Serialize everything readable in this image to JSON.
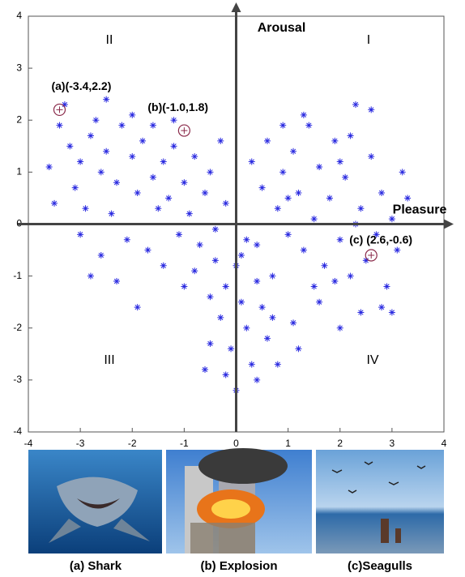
{
  "chart_data": {
    "type": "scatter",
    "xlim": [
      -4,
      4
    ],
    "ylim": [
      -4,
      4
    ],
    "xticks": [
      -4,
      -3,
      -2,
      -1,
      0,
      1,
      2,
      3,
      4
    ],
    "yticks": [
      -4,
      -3,
      -2,
      -1,
      0,
      1,
      2,
      3,
      4
    ],
    "x_label": "Pleasure",
    "y_label": "Arousal",
    "quadrant_labels": [
      "I",
      "II",
      "III",
      "IV"
    ],
    "color": "#2a2ae0",
    "x": [
      -3.4,
      -3.2,
      -3.0,
      -2.8,
      -2.6,
      -2.5,
      -2.3,
      -2.2,
      -2.0,
      -1.9,
      -1.8,
      -1.6,
      -1.5,
      -1.4,
      -1.3,
      -1.2,
      -1.1,
      -1.0,
      -0.9,
      -0.8,
      -0.7,
      -0.6,
      -0.5,
      -0.4,
      -3.6,
      -3.1,
      -2.9,
      -2.7,
      -2.4,
      -2.1,
      -1.7,
      -1.4,
      -3.3,
      -2.0,
      -1.6,
      -3.0,
      -2.6,
      -2.3,
      -1.9,
      -2.5,
      -1.2,
      -0.3,
      -0.2,
      -3.5,
      -2.8,
      -1.0,
      -0.5,
      0.3,
      0.5,
      0.6,
      0.8,
      0.9,
      1.0,
      1.1,
      1.2,
      1.3,
      1.4,
      1.5,
      1.6,
      1.7,
      1.8,
      1.9,
      2.0,
      2.1,
      2.2,
      2.3,
      2.4,
      2.5,
      2.6,
      2.7,
      2.8,
      2.9,
      3.0,
      3.1,
      3.2,
      2.2,
      1.3,
      0.9,
      1.6,
      2.0,
      2.4,
      2.8,
      3.0,
      1.1,
      0.7,
      1.5,
      2.6,
      2.0,
      1.0,
      0.4,
      1.9,
      3.3,
      2.3,
      1.2,
      0.5,
      -0.4,
      -0.2,
      0.0,
      0.1,
      0.2,
      -0.1,
      0.3,
      0.0,
      -0.3,
      0.4,
      0.6,
      0.2,
      -0.5,
      0.8,
      -0.6,
      0.1,
      0.4,
      -0.2,
      0.7,
      -0.8
    ],
    "values": [
      1.9,
      1.5,
      1.2,
      1.7,
      1.0,
      1.4,
      0.8,
      1.9,
      1.3,
      0.6,
      1.6,
      0.9,
      0.3,
      1.2,
      0.5,
      1.5,
      -0.2,
      0.8,
      0.2,
      1.3,
      -0.4,
      0.6,
      1.0,
      -0.1,
      1.1,
      0.7,
      0.3,
      2.0,
      0.2,
      -0.3,
      -0.5,
      -0.8,
      2.3,
      2.1,
      1.9,
      -0.2,
      -0.6,
      -1.1,
      -1.6,
      2.4,
      2.0,
      1.6,
      0.4,
      0.4,
      -1.0,
      -1.2,
      -2.3,
      1.2,
      0.7,
      1.6,
      0.3,
      1.0,
      -0.2,
      1.4,
      0.6,
      -0.5,
      1.9,
      0.1,
      1.1,
      -0.8,
      0.5,
      1.6,
      -0.3,
      0.9,
      -1.0,
      2.3,
      0.3,
      -0.7,
      1.3,
      -0.2,
      0.6,
      -1.2,
      0.1,
      -0.5,
      1.0,
      1.7,
      2.1,
      1.9,
      -1.5,
      -2.0,
      -1.7,
      -1.6,
      -1.7,
      -1.9,
      -1.0,
      -1.2,
      2.2,
      1.2,
      0.5,
      -0.4,
      -1.1,
      0.5,
      0.0,
      -2.4,
      -1.6,
      -0.7,
      -1.2,
      -0.8,
      -1.5,
      -2.0,
      -2.4,
      -2.7,
      -3.2,
      -1.8,
      -1.1,
      -2.2,
      -0.3,
      -1.4,
      -2.7,
      -2.8,
      -0.6,
      -3.0,
      -2.9,
      -1.8,
      -0.9
    ],
    "annotations": [
      {
        "text": "(a)(-3.4,2.2)",
        "x": -3.4,
        "y": 2.2
      },
      {
        "text": "(b)(-1.0,1.8)",
        "x": -1.0,
        "y": 1.8
      },
      {
        "text": "(c) (2.6,-0.6)",
        "x": 2.6,
        "y": -0.6
      }
    ]
  },
  "images": [
    {
      "caption": "(a) Shark"
    },
    {
      "caption": "(b) Explosion"
    },
    {
      "caption": "(c)Seagulls"
    }
  ]
}
